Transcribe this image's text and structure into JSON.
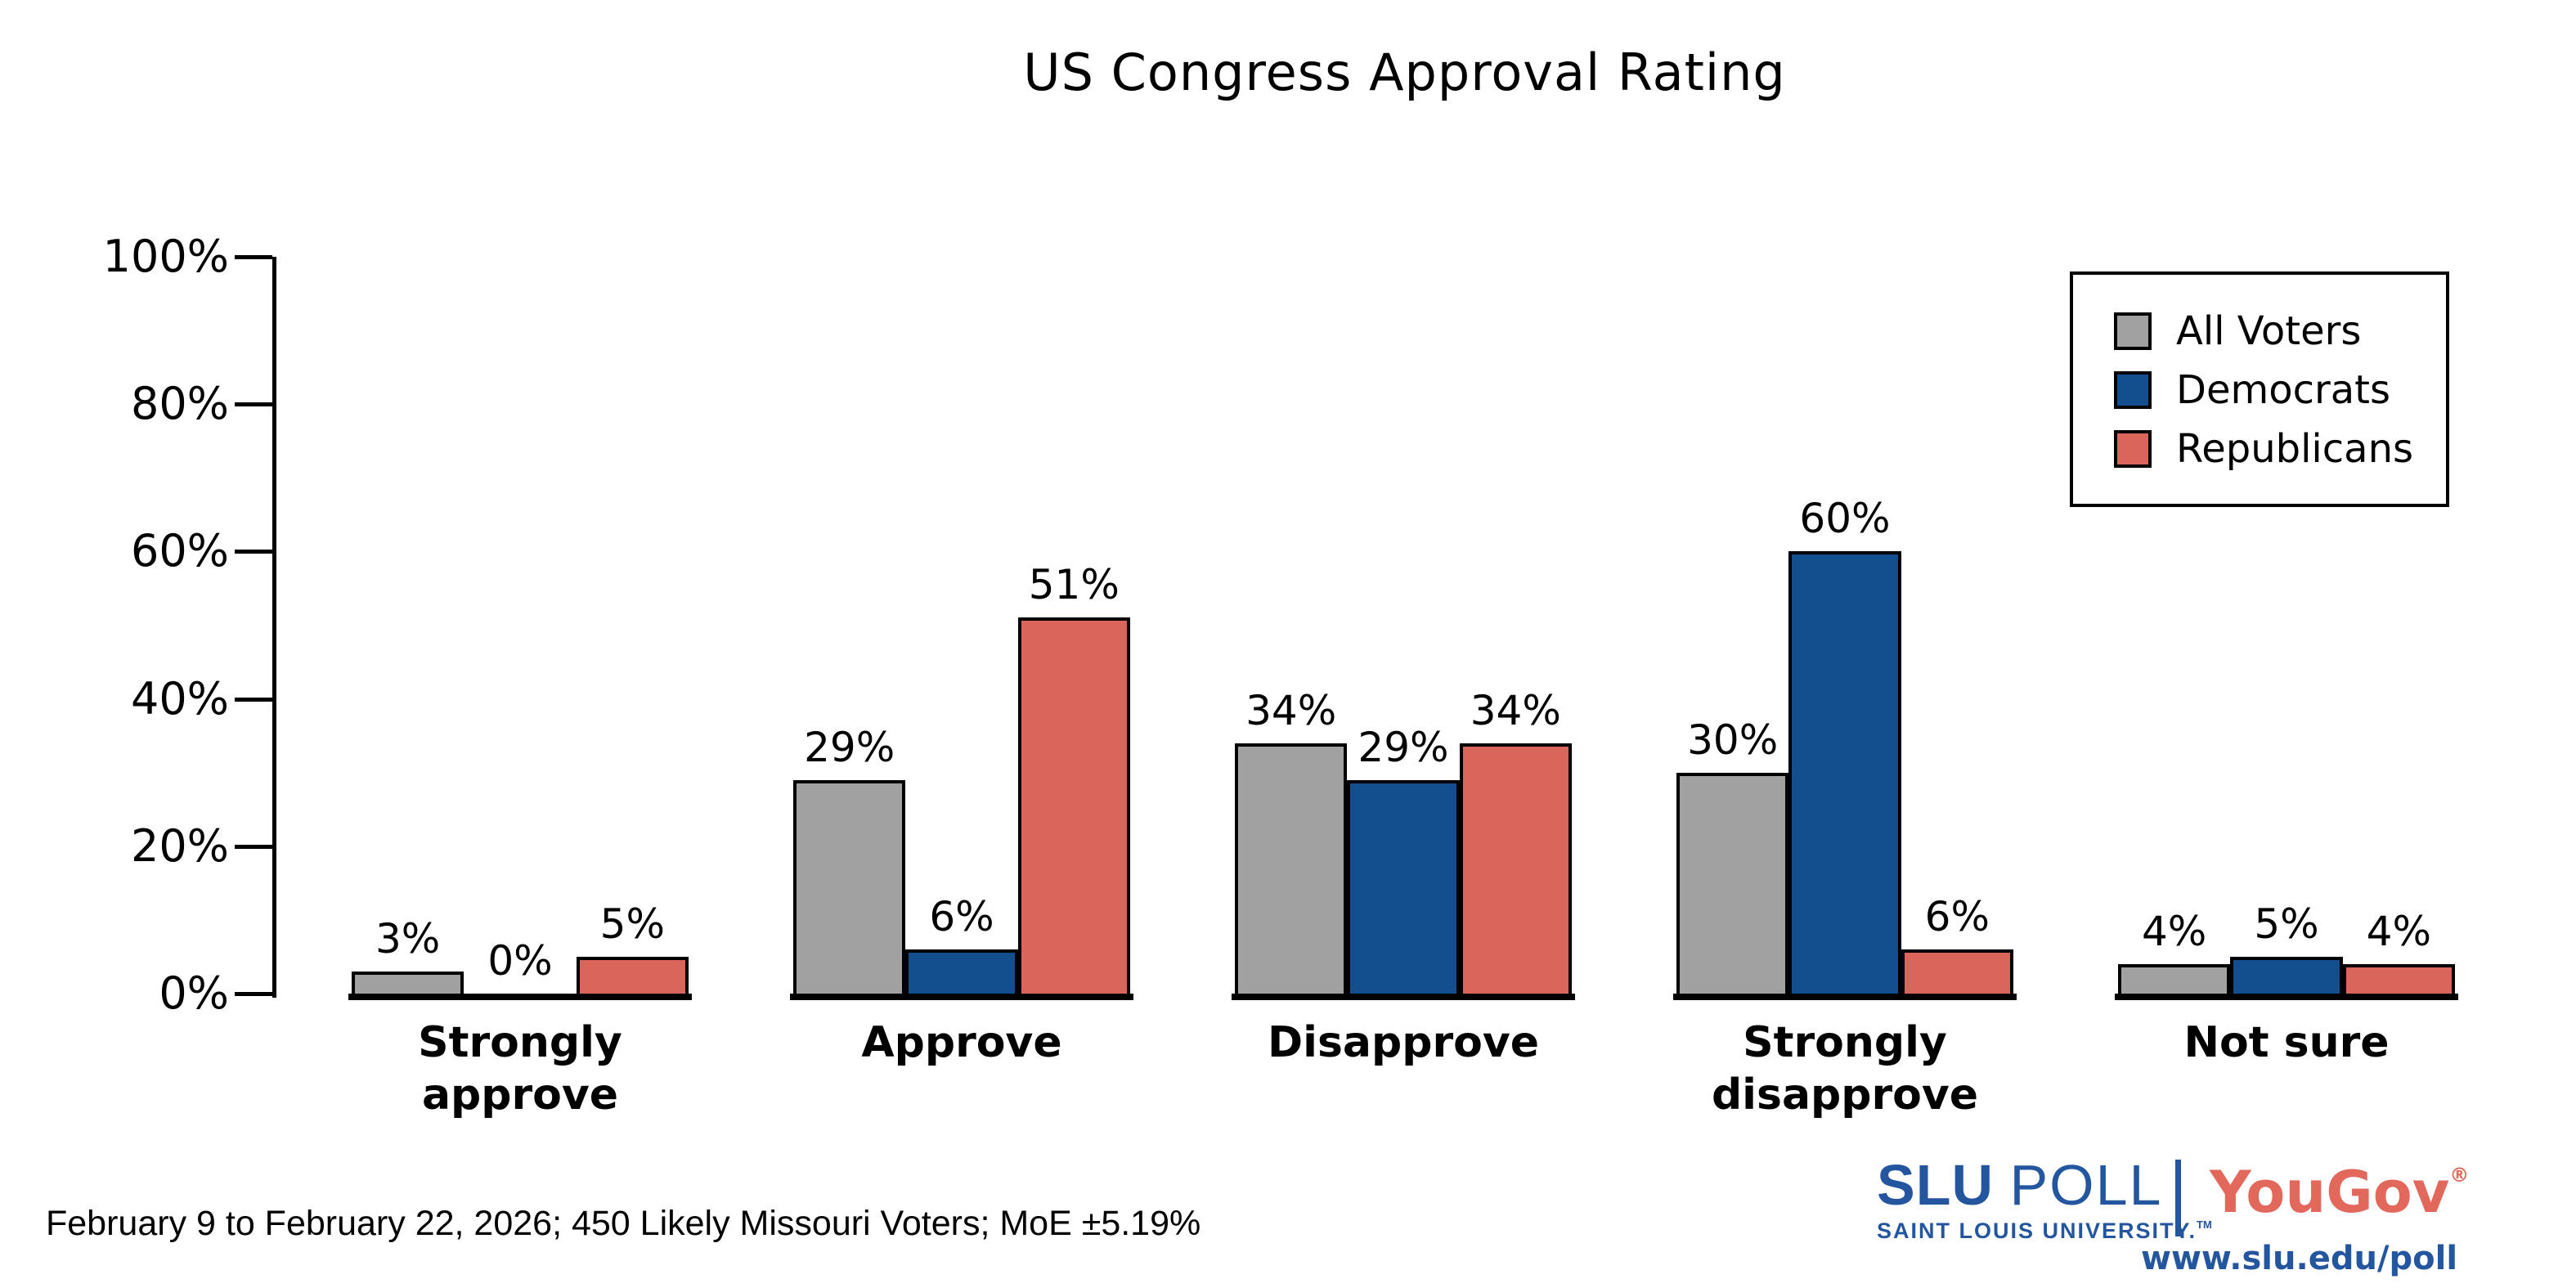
{
  "title": "US Congress Approval Rating",
  "colors": {
    "all_voters_gray": "#A1A1A1",
    "democrats_blue": "#134E8E",
    "republicans_red": "#D9655B",
    "bar_outline": "#000000",
    "slu_blue": "#2456A0",
    "yougov_red": "#E2685C",
    "text": "#000000"
  },
  "chart_data": {
    "type": "bar",
    "title": "US Congress Approval Rating",
    "categories": [
      "Strongly approve",
      "Approve",
      "Disapprove",
      "Strongly disapprove",
      "Not sure"
    ],
    "category_label_lines": [
      [
        "Strongly",
        "approve"
      ],
      [
        "Approve"
      ],
      [
        "Disapprove"
      ],
      [
        "Strongly",
        "disapprove"
      ],
      [
        "Not sure"
      ]
    ],
    "series": [
      {
        "name": "All Voters",
        "color": "#A1A1A1",
        "values": [
          3,
          29,
          34,
          30,
          4
        ]
      },
      {
        "name": "Democrats",
        "color": "#134E8E",
        "values": [
          0,
          6,
          29,
          60,
          5
        ]
      },
      {
        "name": "Republicans",
        "color": "#D9655B",
        "values": [
          5,
          51,
          34,
          6,
          4
        ]
      }
    ],
    "value_labels": [
      [
        "3%",
        "0%",
        "5%"
      ],
      [
        "29%",
        "6%",
        "51%"
      ],
      [
        "34%",
        "29%",
        "34%"
      ],
      [
        "30%",
        "60%",
        "6%"
      ],
      [
        "4%",
        "5%",
        "4%"
      ]
    ],
    "xlabel": "",
    "ylabel": "",
    "ylim": [
      0,
      100
    ],
    "y_tick_labels": [
      "0%",
      "20%",
      "40%",
      "60%",
      "80%",
      "100%"
    ],
    "y_tick_values": [
      0,
      20,
      40,
      60,
      80,
      100
    ],
    "grid": false,
    "legend": {
      "position": "top-right",
      "entries": [
        "All Voters",
        "Democrats",
        "Republicans"
      ]
    }
  },
  "footer": {
    "note": "February 9 to February 22, 2026; 450 Likely Missouri Voters; MoE ±5.19%"
  },
  "branding": {
    "slu_bold": "SLU",
    "slu_light": "POLL",
    "slu_sub": "SAINT LOUIS UNIVERSITY.",
    "slu_tm": "TM",
    "yougov": "YouGov",
    "yougov_reg": "®",
    "url": "www.slu.edu/poll"
  }
}
